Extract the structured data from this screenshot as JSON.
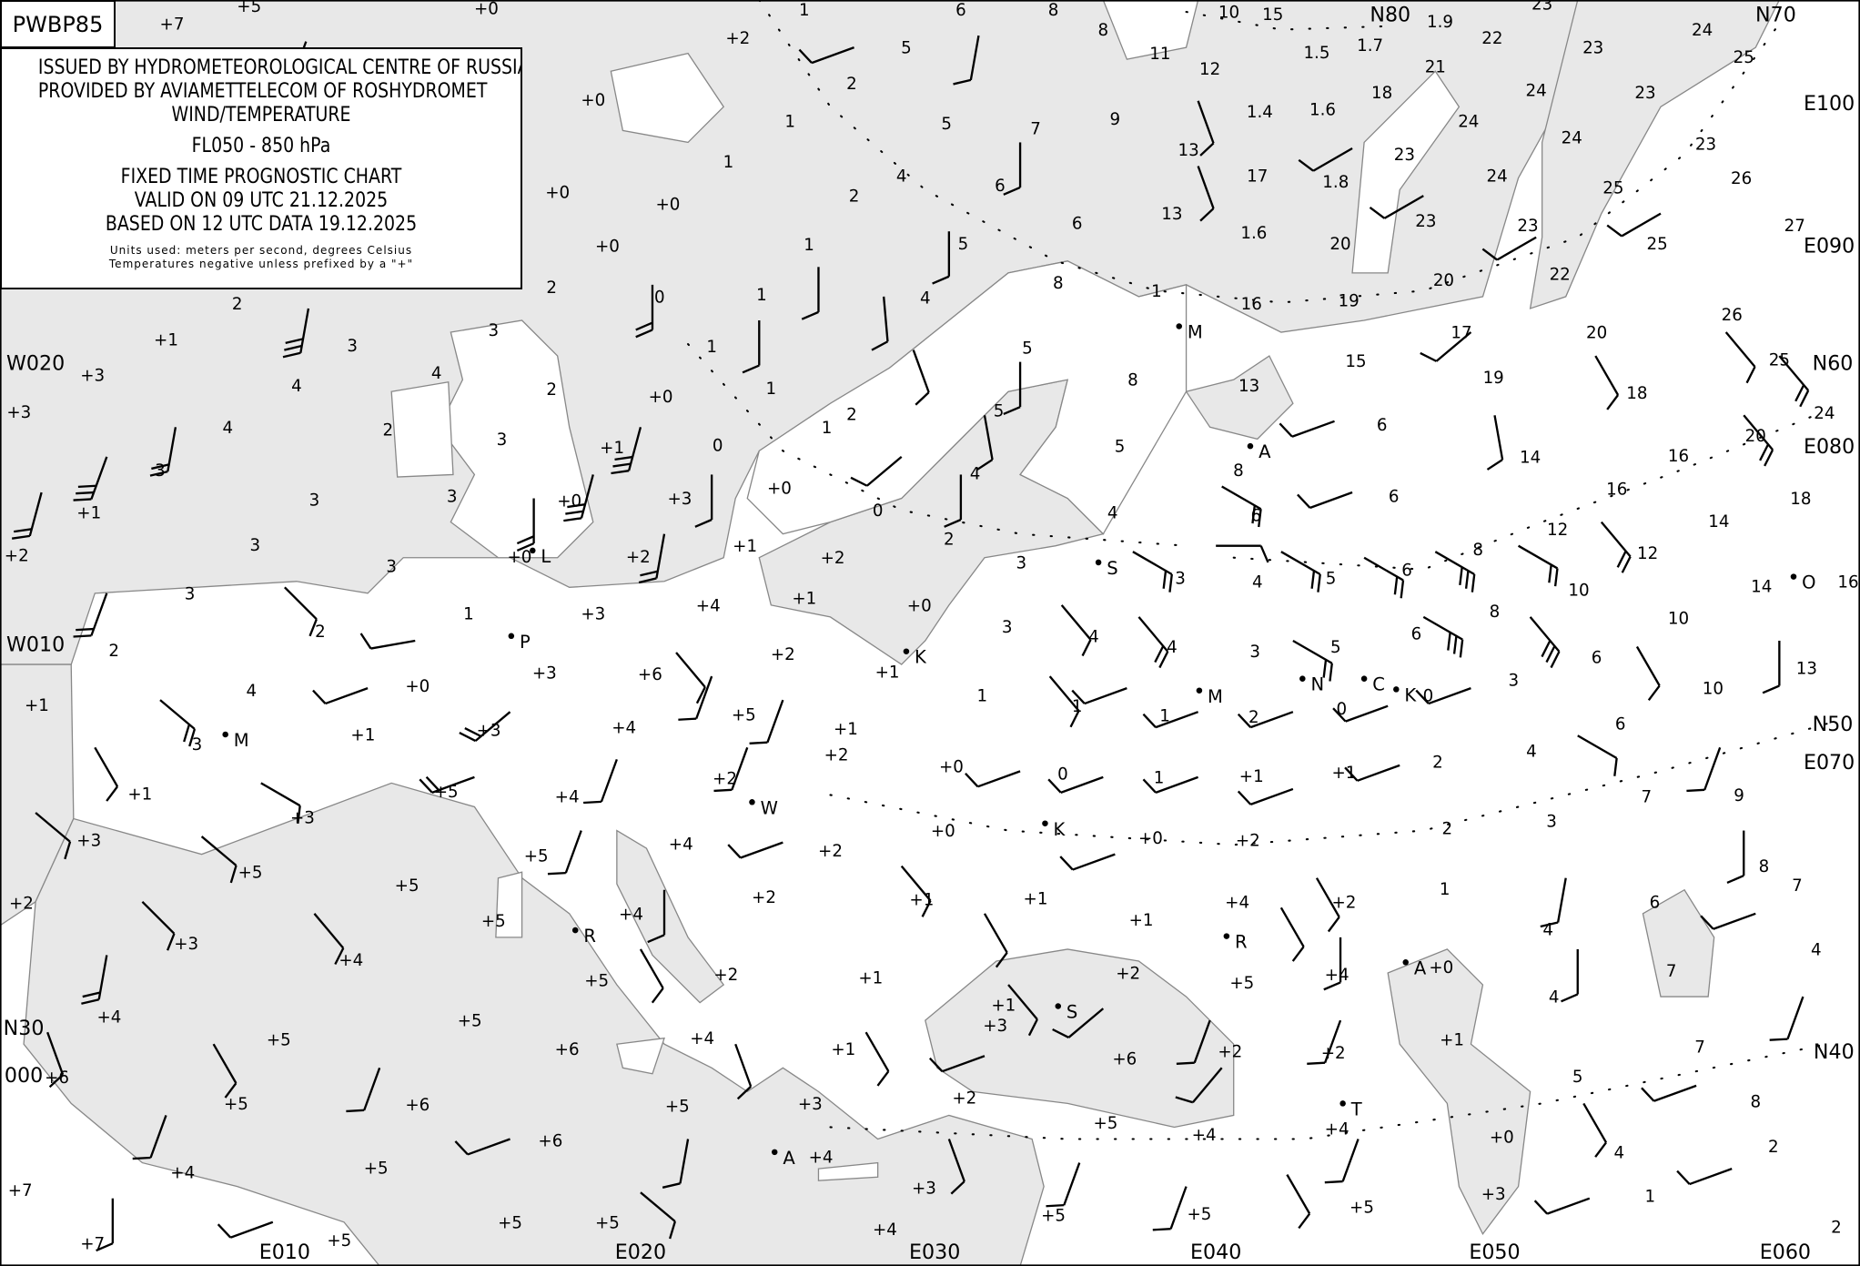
{
  "chart_code": "PWBP85",
  "header": {
    "line1": "ISSUED BY HYDROMETEOROLOGICAL CENTRE OF RUSSIA",
    "line2": "PROVIDED BY AVIAMETTELECOM OF ROSHYDROMET",
    "line3": "WIND/TEMPERATURE",
    "level": "FL050 - 850 hPa",
    "type": "FIXED TIME PROGNOSTIC CHART",
    "valid": "VALID ON 09 UTC 21.12.2025",
    "based": "BASED ON 12 UTC DATA 19.12.2025",
    "units": "Units used: meters per second, degrees Celsius",
    "note": "Temperatures negative unless prefixed by a \"+\""
  },
  "colors": {
    "sea": "#e8e8e8",
    "land": "#ffffff",
    "coast": "#888888",
    "ink": "#000000"
  },
  "grid_labels": [
    "N80",
    "N70",
    "E100",
    "E090",
    "N60",
    "E080",
    "N50",
    "E070",
    "N40",
    "N30",
    "000",
    "W010",
    "W020",
    "E010",
    "E020",
    "E030",
    "E040",
    "E050",
    "E060"
  ],
  "cities": [
    "L",
    "P",
    "M",
    "K",
    "S",
    "M",
    "N",
    "C",
    "K",
    "W",
    "K",
    "R",
    "R",
    "A",
    "M",
    "A",
    "S",
    "T",
    "A",
    "O"
  ],
  "temperature_labels": [
    "+7",
    "+5",
    "+0",
    "1",
    "6",
    "8",
    "8",
    "10",
    "15",
    "1.9",
    "23",
    "24",
    "+2",
    "5",
    "11",
    "12",
    "1.5",
    "1.7",
    "21",
    "22",
    "23",
    "25",
    "23",
    "24",
    "18",
    "1.6",
    "1.4",
    "2",
    "5",
    "9",
    "+0",
    "1",
    "1",
    "7",
    "24",
    "24",
    "23",
    "13",
    "17",
    "1.8",
    "23",
    "26",
    "25",
    "4",
    "6",
    "+0",
    "+0",
    "2",
    "13",
    "23",
    "27",
    "24",
    "6",
    "1.6",
    "20",
    "25",
    "23",
    "+0",
    "5",
    "1",
    "20",
    "22",
    "2",
    "0",
    "2",
    "1",
    "4",
    "8",
    "1",
    "16",
    "19",
    "26",
    "+1",
    "3",
    "3",
    "1",
    "20",
    "17",
    "25",
    "+3",
    "4",
    "4",
    "2",
    "+0",
    "1",
    "5",
    "15",
    "19",
    "13",
    "18",
    "+3",
    "4",
    "2",
    "3",
    "1",
    "2",
    "5",
    "8",
    "6",
    "24",
    "20",
    "+1",
    "0",
    "5",
    "14",
    "16",
    "3",
    "3",
    "3",
    "+0",
    "+3",
    "4",
    "8",
    "6",
    "16",
    "18",
    "+0",
    "0",
    "4",
    "6",
    "12",
    "14",
    "+1",
    "+2",
    "3",
    "3",
    "+0",
    "+2",
    "+1",
    "+2",
    "2",
    "3",
    "3",
    "4",
    "5",
    "6",
    "8",
    "12",
    "14",
    "3",
    "+1",
    "+0",
    "+4",
    "+3",
    "1",
    "2",
    "8",
    "10",
    "16",
    "2",
    "4",
    "4",
    "3",
    "5",
    "6",
    "10",
    "3",
    "+2",
    "+1",
    "+3",
    "+6",
    "4",
    "+0",
    "1",
    "1",
    "1",
    "2",
    "0",
    "0",
    "3",
    "6",
    "13",
    "10",
    "+1",
    "3",
    "+3",
    "+5",
    "+4",
    "+1",
    "+1",
    "6",
    "4",
    "2",
    "+2",
    "+0",
    "0",
    "1",
    "+1",
    "+1",
    "7",
    "9",
    "+1",
    "+5",
    "+4",
    "+2",
    "+3",
    "3",
    "2",
    "+3",
    "+0",
    "+2",
    "+4",
    "+0",
    "+2",
    "8",
    "7",
    "+5",
    "+5",
    "+5",
    "1",
    "+2",
    "+4",
    "6",
    "+2",
    "+1",
    "+1",
    "+1",
    "+2",
    "+4",
    "+5",
    "4",
    "4",
    "+3",
    "+4",
    "+5",
    "+2",
    "+4",
    "+0",
    "4",
    "7",
    "+2",
    "+1",
    "+5",
    "+1",
    "+4",
    "+5",
    "+3",
    "+1",
    "7",
    "+6",
    "+4",
    "+1",
    "+6",
    "+2",
    "+2",
    "5",
    "+5",
    "8",
    "+6",
    "+5",
    "+6",
    "+5",
    "+3",
    "+2",
    "+4",
    "+5",
    "+4",
    "+0",
    "4",
    "2",
    "+6",
    "+4",
    "+5",
    "+4",
    "+3",
    "+3",
    "1",
    "+7",
    "+5",
    "+5",
    "+5",
    "+5",
    "+7",
    "+5",
    "+5",
    "+4",
    "2"
  ]
}
